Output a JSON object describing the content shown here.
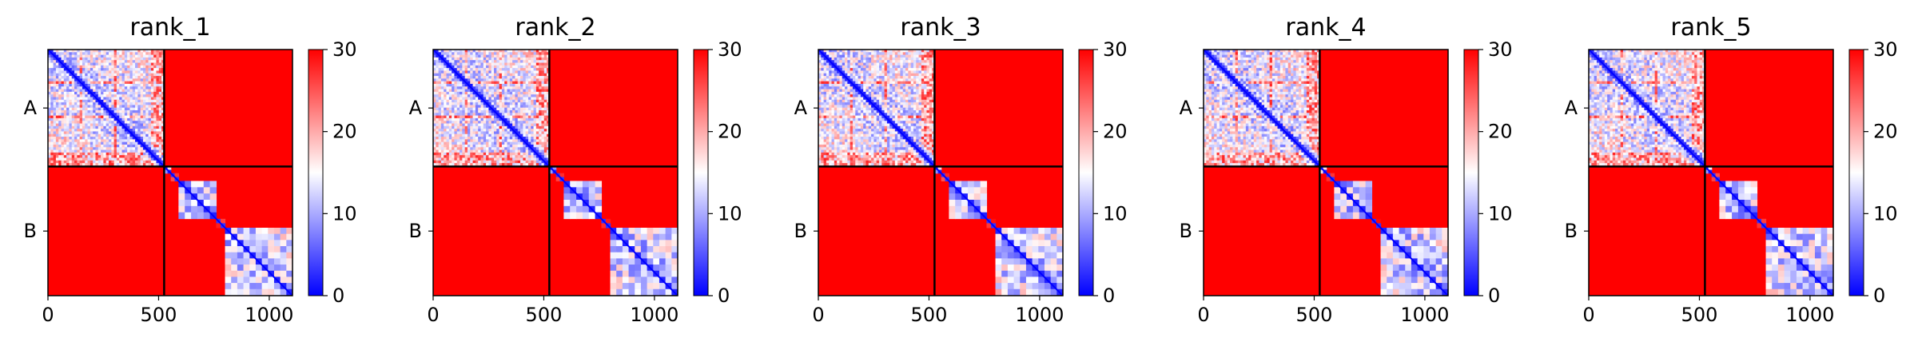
{
  "chart_data": [
    {
      "type": "heatmap",
      "title": "rank_1",
      "colorbar": {
        "min": 0,
        "max": 30,
        "ticks": [
          0,
          10,
          20,
          30
        ],
        "colormap": "bwr"
      },
      "xticks": [
        0,
        500,
        1000
      ],
      "x_extent": [
        0,
        1105
      ],
      "chains": [
        {
          "label": "A",
          "start": 0,
          "end": 525
        },
        {
          "label": "B",
          "start": 525,
          "end": 1105
        }
      ]
    },
    {
      "type": "heatmap",
      "title": "rank_2",
      "colorbar": {
        "min": 0,
        "max": 30,
        "ticks": [
          0,
          10,
          20,
          30
        ],
        "colormap": "bwr"
      },
      "xticks": [
        0,
        500,
        1000
      ],
      "x_extent": [
        0,
        1105
      ],
      "chains": [
        {
          "label": "A",
          "start": 0,
          "end": 525
        },
        {
          "label": "B",
          "start": 525,
          "end": 1105
        }
      ]
    },
    {
      "type": "heatmap",
      "title": "rank_3",
      "colorbar": {
        "min": 0,
        "max": 30,
        "ticks": [
          0,
          10,
          20,
          30
        ],
        "colormap": "bwr"
      },
      "xticks": [
        0,
        500,
        1000
      ],
      "x_extent": [
        0,
        1105
      ],
      "chains": [
        {
          "label": "A",
          "start": 0,
          "end": 525
        },
        {
          "label": "B",
          "start": 525,
          "end": 1105
        }
      ]
    },
    {
      "type": "heatmap",
      "title": "rank_4",
      "colorbar": {
        "min": 0,
        "max": 30,
        "ticks": [
          0,
          10,
          20,
          30
        ],
        "colormap": "bwr"
      },
      "xticks": [
        0,
        500,
        1000
      ],
      "x_extent": [
        0,
        1105
      ],
      "chains": [
        {
          "label": "A",
          "start": 0,
          "end": 525
        },
        {
          "label": "B",
          "start": 525,
          "end": 1105
        }
      ]
    },
    {
      "type": "heatmap",
      "title": "rank_5",
      "colorbar": {
        "min": 0,
        "max": 30,
        "ticks": [
          0,
          10,
          20,
          30
        ],
        "colormap": "bwr"
      },
      "xticks": [
        0,
        500,
        1000
      ],
      "x_extent": [
        0,
        1105
      ],
      "chains": [
        {
          "label": "A",
          "start": 0,
          "end": 525
        },
        {
          "label": "B",
          "start": 525,
          "end": 1105
        }
      ]
    }
  ],
  "colors": {
    "low": "#0000ff",
    "mid": "#ffffff",
    "high": "#ff0000",
    "boundary": "#000000"
  }
}
